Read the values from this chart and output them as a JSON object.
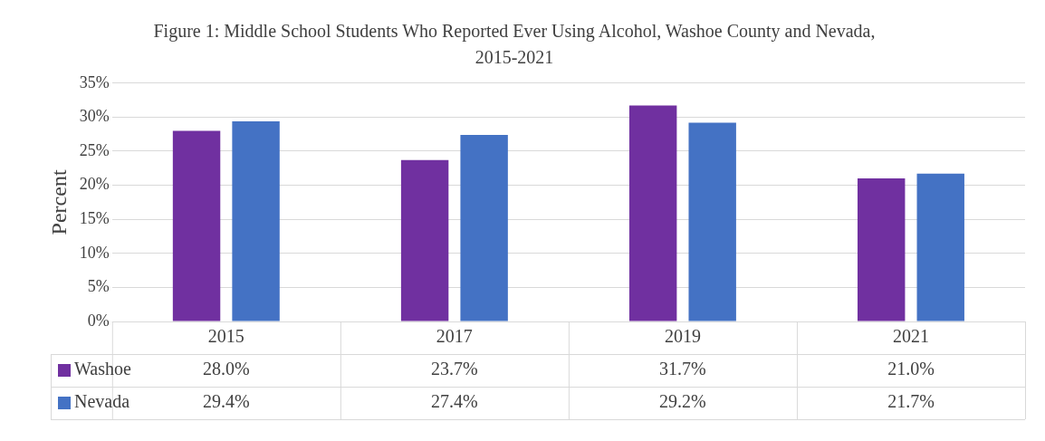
{
  "chart_data": {
    "type": "bar",
    "title": "Figure 1: Middle School Students Who Reported Ever Using Alcohol, Washoe County and Nevada, 2015-2021",
    "ylabel": "Percent",
    "categories": [
      "2015",
      "2017",
      "2019",
      "2021"
    ],
    "series": [
      {
        "name": "Washoe",
        "color": "#7030a0",
        "values": [
          28.0,
          23.7,
          31.7,
          21.0
        ],
        "value_labels": [
          "28.0%",
          "23.7%",
          "31.7%",
          "21.0%"
        ]
      },
      {
        "name": "Nevada",
        "color": "#4472c4",
        "values": [
          29.4,
          27.4,
          29.2,
          21.7
        ],
        "value_labels": [
          "29.4%",
          "27.4%",
          "29.2%",
          "21.7%"
        ]
      }
    ],
    "ylim": [
      0,
      35
    ],
    "yticks": [
      {
        "value": 0,
        "label": "0%"
      },
      {
        "value": 5,
        "label": "5%"
      },
      {
        "value": 10,
        "label": "10%"
      },
      {
        "value": 15,
        "label": "15%"
      },
      {
        "value": 20,
        "label": "20%"
      },
      {
        "value": 25,
        "label": "25%"
      },
      {
        "value": 30,
        "label": "30%"
      },
      {
        "value": 35,
        "label": "35%"
      }
    ],
    "grid": "y",
    "legend": "bottom"
  }
}
